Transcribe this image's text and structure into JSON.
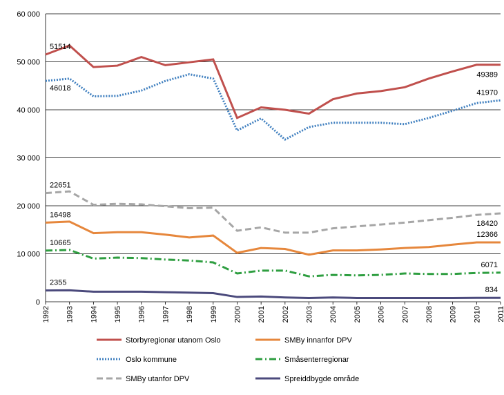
{
  "chart_data": {
    "type": "line",
    "categories": [
      "1992",
      "1993",
      "1994",
      "1995",
      "1996",
      "1997",
      "1998",
      "1999",
      "2000",
      "2001",
      "2002",
      "2003",
      "2004",
      "2005",
      "2006",
      "2007",
      "2008",
      "2009",
      "2010",
      "2011"
    ],
    "ylim": [
      0,
      60000
    ],
    "yticks": [
      0,
      {
        "value": 10000,
        "label": "10 000"
      },
      {
        "value": 20000,
        "label": "20 000"
      },
      {
        "value": 30000,
        "label": "30 000"
      },
      {
        "value": 40000,
        "label": "40 000"
      },
      {
        "value": 50000,
        "label": "50 000"
      },
      {
        "value": 60000,
        "label": "60 000"
      }
    ],
    "grid": true,
    "series": [
      {
        "name": "Storbyregionar utanom Oslo",
        "color": "#c0504d",
        "dash": "solid",
        "values": [
          51514,
          53400,
          48900,
          49200,
          51000,
          49300,
          49900,
          50500,
          38300,
          40500,
          40000,
          39200,
          42200,
          43400,
          43900,
          44700,
          46500,
          48000,
          49389,
          49389
        ]
      },
      {
        "name": "SMBy innanfor DPV",
        "color": "#e6873c",
        "dash": "solid",
        "values": [
          16498,
          16700,
          14300,
          14500,
          14500,
          14000,
          13400,
          13800,
          10200,
          11200,
          11000,
          9800,
          10700,
          10700,
          10900,
          11200,
          11400,
          11900,
          12366,
          12366
        ]
      },
      {
        "name": "Oslo kommune",
        "color": "#3f7fbf",
        "dash": "dotted",
        "values": [
          46018,
          46500,
          42800,
          42900,
          44000,
          46000,
          47400,
          46500,
          35700,
          38200,
          33800,
          36400,
          37300,
          37300,
          37300,
          37000,
          38300,
          39800,
          41400,
          41970
        ]
      },
      {
        "name": "Småsenterregionar",
        "color": "#2e9e40",
        "dash": "dashdot",
        "values": [
          10665,
          10800,
          9000,
          9200,
          9100,
          8800,
          8600,
          8200,
          5900,
          6500,
          6500,
          5300,
          5600,
          5500,
          5600,
          5900,
          5800,
          5800,
          6000,
          6071
        ]
      },
      {
        "name": "SMBy utanfor DPV",
        "color": "#a6a6a6",
        "dash": "dashed",
        "values": [
          22651,
          23000,
          20200,
          20400,
          20300,
          19900,
          19500,
          19600,
          14800,
          15500,
          14400,
          14400,
          15300,
          15700,
          16100,
          16500,
          17000,
          17500,
          18100,
          18420
        ]
      },
      {
        "name": "Spreiddbygde område",
        "color": "#4b4a7c",
        "dash": "solid",
        "values": [
          2355,
          2400,
          2100,
          2100,
          2100,
          2000,
          1900,
          1800,
          1000,
          1100,
          900,
          800,
          900,
          800,
          800,
          800,
          800,
          800,
          834,
          834
        ]
      }
    ]
  }
}
